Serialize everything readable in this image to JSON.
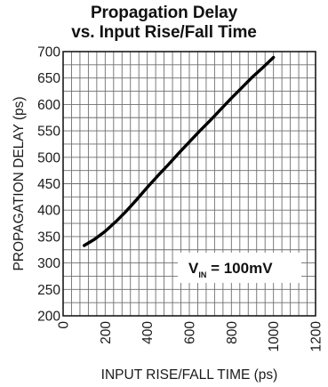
{
  "chart_data": {
    "type": "line",
    "title_line1": "Propagation Delay",
    "title_line2": "vs. Input Rise/Fall Time",
    "xlabel": "INPUT RISE/FALL TIME (ps)",
    "ylabel": "PROPAGATION DELAY (ps)",
    "xlim": [
      0,
      1200
    ],
    "ylim": [
      200,
      700
    ],
    "xticks": [
      "0",
      "200",
      "400",
      "600",
      "800",
      "1000",
      "1200"
    ],
    "yticks": [
      "200",
      "250",
      "300",
      "350",
      "400",
      "450",
      "500",
      "550",
      "600",
      "650",
      "700"
    ],
    "grid": true,
    "annotation": {
      "symbol": "V",
      "subscript": "IN",
      "rest": " = 100mV"
    },
    "series": [
      {
        "x": [
          100,
          150,
          200,
          250,
          300,
          350,
          400,
          450,
          500,
          550,
          600,
          650,
          700,
          750,
          800,
          850,
          900,
          950,
          1000
        ],
        "y": [
          333,
          345,
          360,
          378,
          398,
          420,
          443,
          465,
          486,
          508,
          529,
          550,
          570,
          591,
          612,
          632,
          652,
          670,
          689
        ]
      }
    ]
  },
  "colors": {
    "grid": "#6e6e6e",
    "frame": "#1a1a1a",
    "curve": "#000000"
  }
}
